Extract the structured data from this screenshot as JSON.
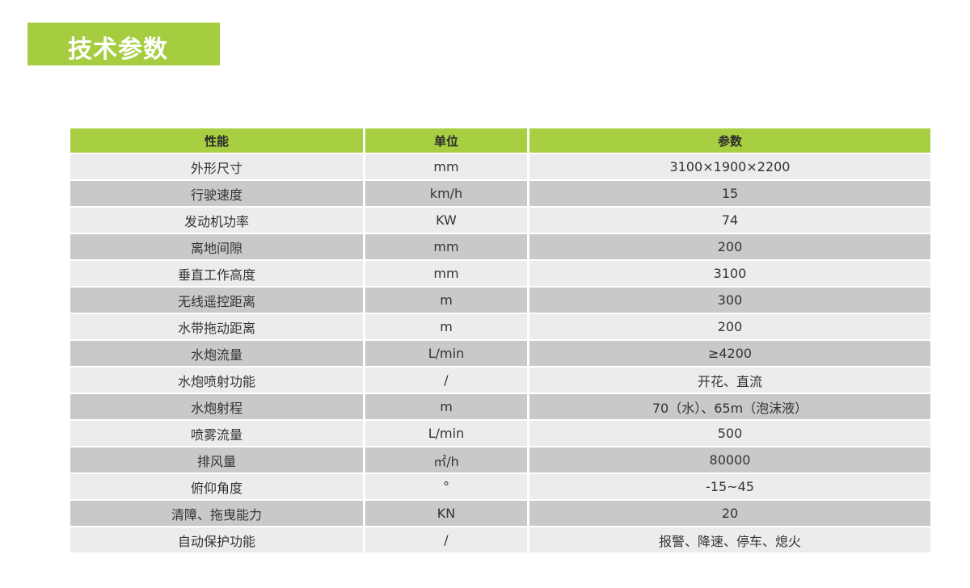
{
  "title": "技术参数",
  "colors": {
    "accent": "#a5cd3f",
    "row_light": "#ececec",
    "row_dark": "#c9c9c9"
  },
  "table": {
    "headers": [
      "性能",
      "单位",
      "参数"
    ],
    "rows": [
      [
        "外形尺寸",
        "mm",
        "3100×1900×2200"
      ],
      [
        "行驶速度",
        "km/h",
        "15"
      ],
      [
        "发动机功率",
        "KW",
        "74"
      ],
      [
        "离地间隙",
        "mm",
        "200"
      ],
      [
        "垂直工作高度",
        "mm",
        "3100"
      ],
      [
        "无线遥控距离",
        "m",
        "300"
      ],
      [
        "水带拖动距离",
        "m",
        "200"
      ],
      [
        "水炮流量",
        "L/min",
        "≥4200"
      ],
      [
        "水炮喷射功能",
        "/",
        "开花、直流"
      ],
      [
        "水炮射程",
        "m",
        "70（水）、65m（泡沫液）"
      ],
      [
        "喷雾流量",
        "L/min",
        "500"
      ],
      [
        "排风量",
        "㎡/h",
        "80000"
      ],
      [
        "俯仰角度",
        "°",
        "-15~45"
      ],
      [
        "清障、拖曳能力",
        "KN",
        "20"
      ],
      [
        "自动保护功能",
        "/",
        "报警、降速、停车、熄火"
      ]
    ]
  }
}
